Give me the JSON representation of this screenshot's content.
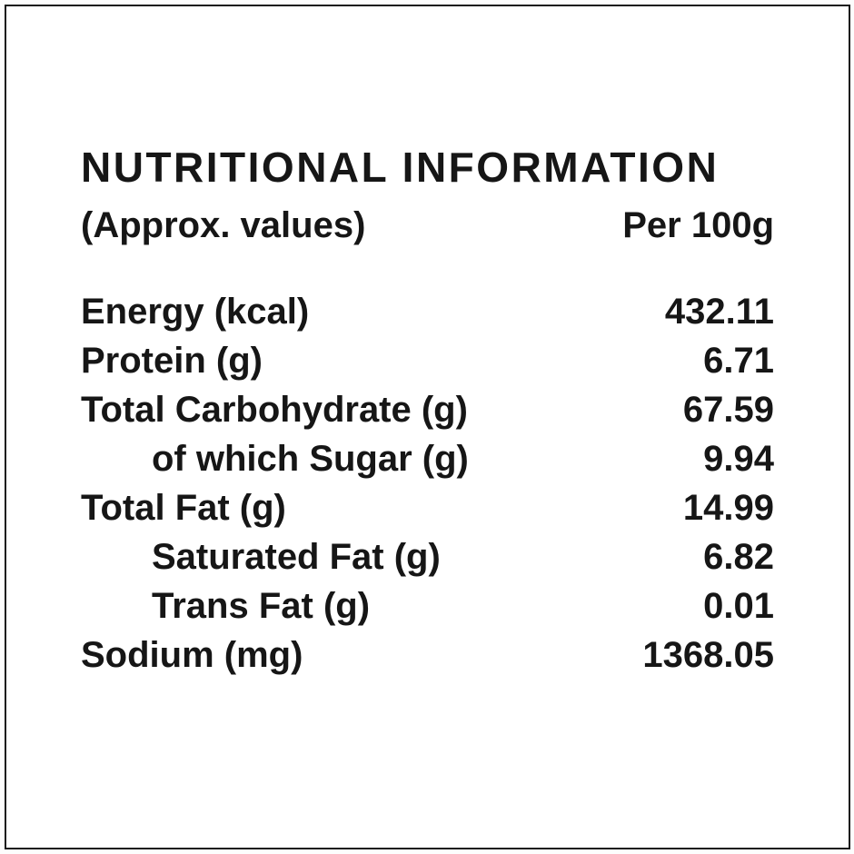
{
  "label": {
    "title": "NUTRITIONAL INFORMATION",
    "subtitle_left": "(Approx. values)",
    "subtitle_right": "Per 100g",
    "rows": [
      {
        "name": "Energy (kcal)",
        "value": "432.11",
        "indent": false
      },
      {
        "name": "Protein (g)",
        "value": "6.71",
        "indent": false
      },
      {
        "name": "Total Carbohydrate (g)",
        "value": "67.59",
        "indent": false
      },
      {
        "name": "of which Sugar (g)",
        "value": "9.94",
        "indent": true
      },
      {
        "name": "Total Fat (g)",
        "value": "14.99",
        "indent": false
      },
      {
        "name": "Saturated Fat (g)",
        "value": "6.82",
        "indent": true
      },
      {
        "name": "Trans Fat (g)",
        "value": "0.01",
        "indent": true
      },
      {
        "name": "Sodium (mg)",
        "value": "1368.05",
        "indent": false
      }
    ],
    "colors": {
      "text": "#1a1a1a",
      "background": "#ffffff",
      "border": "#1a1a1a"
    }
  }
}
